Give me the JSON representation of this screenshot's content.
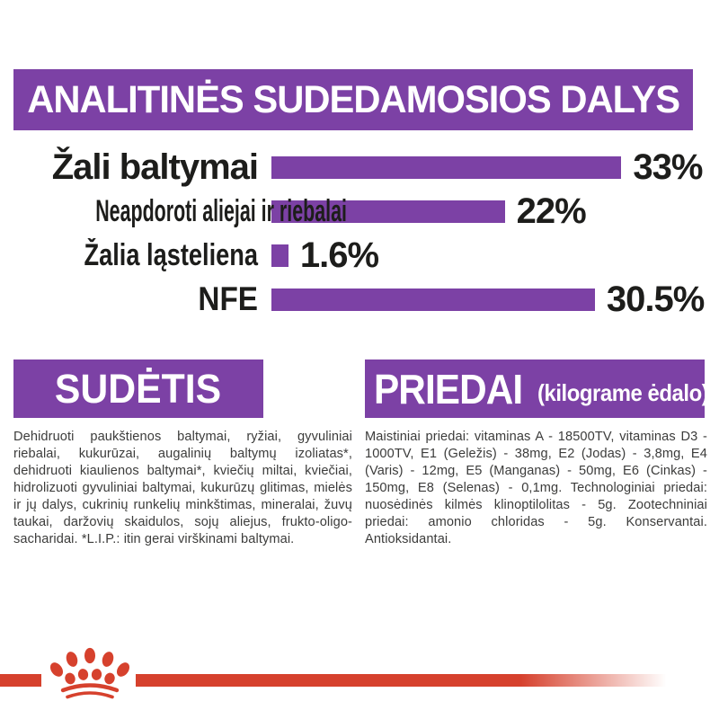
{
  "colors": {
    "purple": "#7C41A5",
    "red": "#D6412D",
    "label_text": "#1D1D1B",
    "body_text": "#3C3C3B",
    "header_text": "#FFFFFF",
    "background": "#FFFFFF"
  },
  "header": {
    "title": "ANALITINĖS SUDEDAMOSIOS DALYS"
  },
  "chart_data": {
    "type": "bar",
    "orientation": "horizontal",
    "title": "ANALITINĖS SUDEDAMOSIOS DALYS",
    "categories": [
      "Žali baltymai",
      "Neapdoroti aliejai ir riebalai",
      "Žalia ląsteliena",
      "NFE"
    ],
    "values": [
      33,
      22,
      1.6,
      30.5
    ],
    "value_labels": [
      "33%",
      "22%",
      "1.6%",
      "30.5%"
    ],
    "unit": "%",
    "xlim": [
      0,
      33.5
    ],
    "bar_color": "#7C41A5",
    "grid": false,
    "legend": false
  },
  "sections": {
    "sudetis": {
      "title": "SUDĖTIS",
      "body": "Dehidruoti paukštienos baltymai, ryžiai, gyvuliniai riebalai, kukurūzai, augalinių baltymų izoliatas*, dehidruoti kiaulienos baltymai*, kviečių miltai, kviečiai, hidrolizuoti gyvuliniai baltymai, kukurūzų glitimas, mielės ir jų dalys, cukrinių runkelių minkštimas, mineralai, žuvų taukai, daržovių skaidulos, sojų aliejus, frukto-oligo-sacharidai. *L.I.P.: itin gerai virškinami baltymai."
    },
    "priedai": {
      "title": "PRIEDAI",
      "subtitle": "(kilograme ėdalo)",
      "body": "Maistiniai priedai: vitaminas A - 18500TV, vitaminas D3 - 1000TV, E1 (Geležis) - 38mg, E2 (Jodas) - 3,8mg, E4 (Varis) - 12mg, E5 (Manganas) - 50mg, E6 (Cinkas) - 150mg, E8 (Selenas) - 0,1mg. Technologiniai priedai: nuosėdinės kilmės klinoptilolitas - 5g. Zootechniniai priedai: amonio chloridas - 5g. Konservantai. Antioksidantai."
    }
  },
  "footer": {
    "logo_icon": "royal-canin-crown-logo"
  }
}
